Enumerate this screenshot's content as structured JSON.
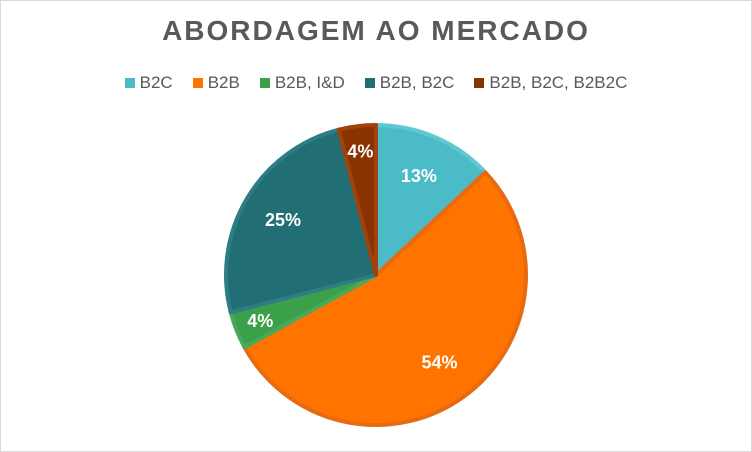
{
  "chart_data": {
    "type": "pie",
    "title": "ABORDAGEM AO MERCADO",
    "categories": [
      "B2C",
      "B2B",
      "B2B, I&D",
      "B2B, B2C",
      "B2B, B2C, B2B2C"
    ],
    "values": [
      13,
      54,
      4,
      25,
      4
    ],
    "data_labels": [
      "13%",
      "54%",
      "4%",
      "25%",
      "4%"
    ],
    "colors": [
      "#4BBCC7",
      "#FF7400",
      "#3BA04A",
      "#226E75",
      "#8B3300"
    ],
    "edge_colors": [
      "#5fc8d2",
      "#e86a10",
      "#4aa85a",
      "#2e7d84",
      "#a0420d"
    ],
    "legend_position": "top",
    "start_angle_deg": 0,
    "direction": "clockwise"
  }
}
